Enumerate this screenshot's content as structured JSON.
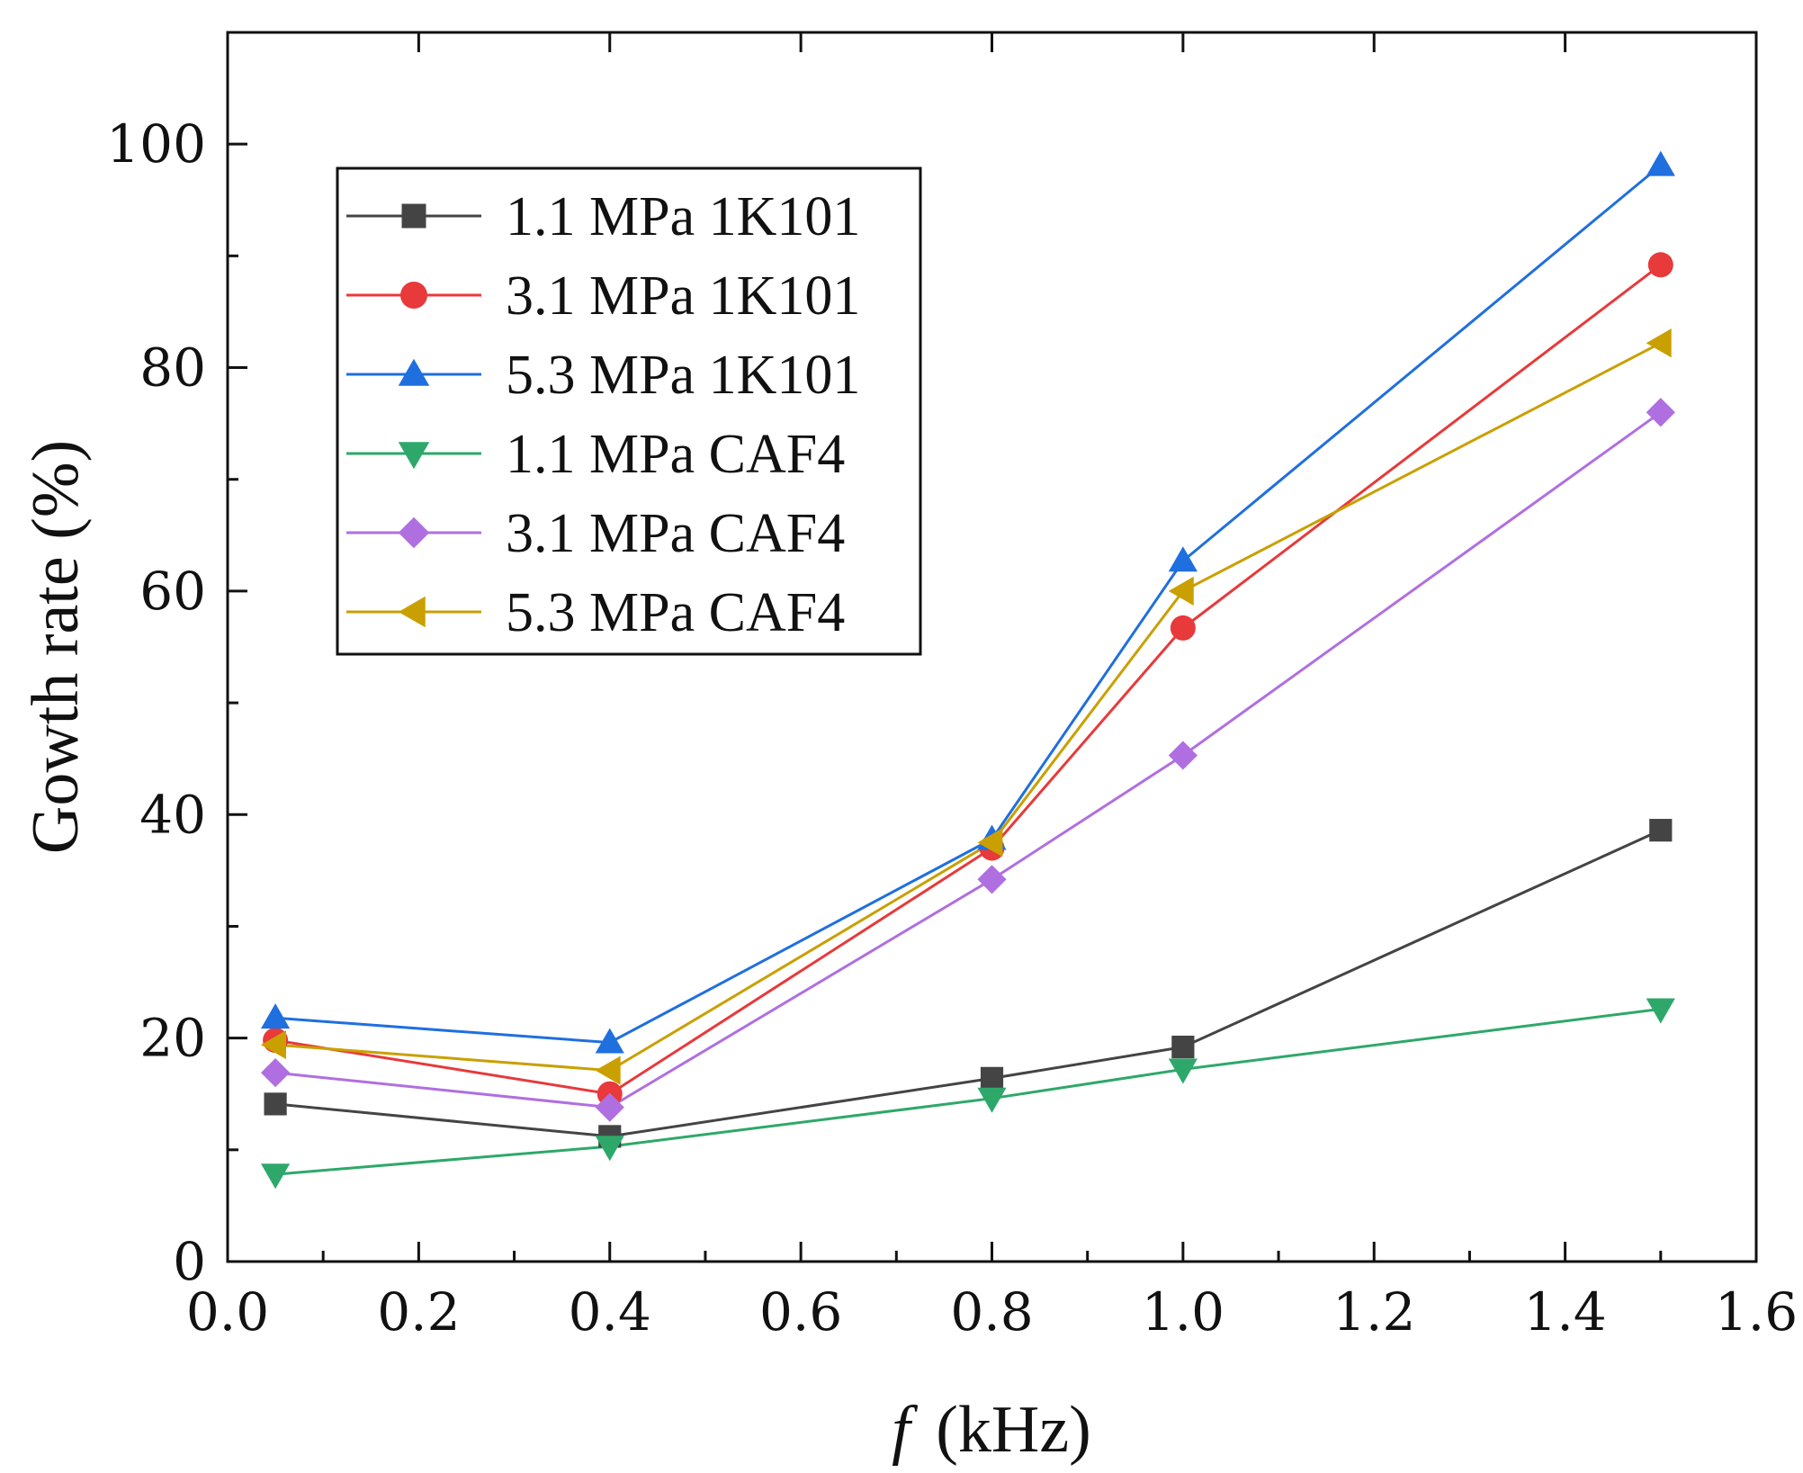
{
  "chart_data": {
    "type": "line",
    "title": "",
    "xlabel": "(kHz)",
    "xlabel_symbol": "f",
    "ylabel": "Gowth rate (%)",
    "xlim": [
      0.0,
      1.6
    ],
    "ylim": [
      0,
      110
    ],
    "x_ticks": [
      0.0,
      0.2,
      0.4,
      0.6,
      0.8,
      1.0,
      1.2,
      1.4,
      1.6
    ],
    "x_tick_labels": [
      "0.0",
      "0.2",
      "0.4",
      "0.6",
      "0.8",
      "1.0",
      "1.2",
      "1.4",
      "1.6"
    ],
    "y_ticks": [
      0,
      20,
      40,
      60,
      80,
      100
    ],
    "y_tick_labels": [
      "0",
      "20",
      "40",
      "60",
      "80",
      "100"
    ],
    "grid": false,
    "legend_position": "top-left",
    "x": [
      0.05,
      0.4,
      0.8,
      1.0,
      1.5
    ],
    "series": [
      {
        "name": "1.1 MPa 1K101",
        "color": "#444444",
        "marker": "square",
        "values": [
          14.1,
          11.2,
          16.4,
          19.2,
          38.6
        ]
      },
      {
        "name": "3.1 MPa 1K101",
        "color": "#e8393b",
        "marker": "circle",
        "values": [
          19.8,
          15.0,
          37.0,
          56.7,
          89.2
        ]
      },
      {
        "name": "5.3 MPa 1K101",
        "color": "#1f6fdf",
        "marker": "triangle-up",
        "values": [
          21.8,
          19.6,
          37.8,
          62.7,
          98.1
        ]
      },
      {
        "name": "1.1 MPa CAF4",
        "color": "#2ea86a",
        "marker": "triangle-down",
        "values": [
          7.8,
          10.3,
          14.6,
          17.2,
          22.6
        ]
      },
      {
        "name": "3.1 MPa CAF4",
        "color": "#b06fe0",
        "marker": "diamond",
        "values": [
          16.9,
          13.8,
          34.2,
          45.3,
          76.0
        ]
      },
      {
        "name": "5.3 MPa CAF4",
        "color": "#c9a000",
        "marker": "triangle-left",
        "values": [
          19.4,
          17.1,
          37.5,
          60.0,
          82.2
        ]
      }
    ]
  }
}
